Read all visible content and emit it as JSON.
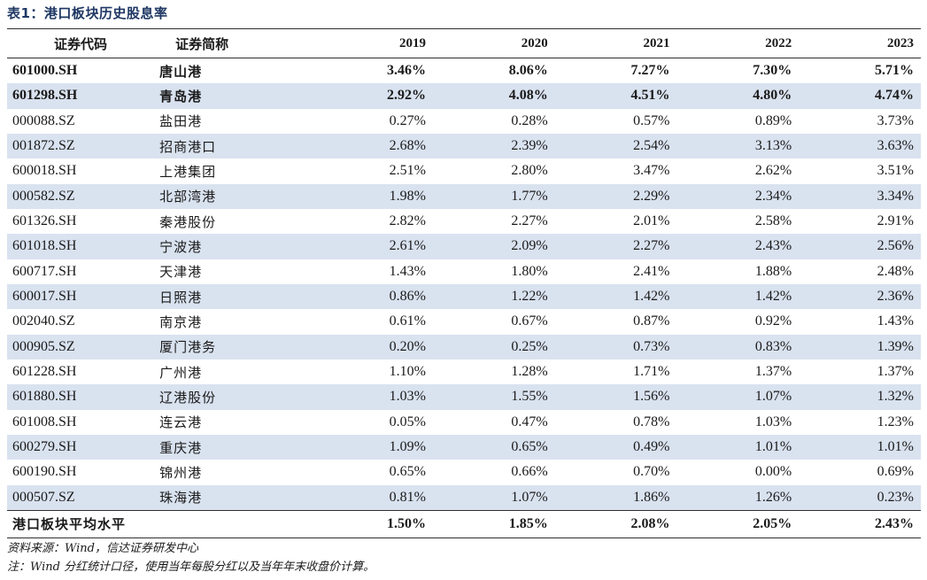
{
  "title": "表1：港口板块历史股息率",
  "headers": {
    "code": "证券代码",
    "name": "证券简称",
    "years": [
      "2019",
      "2020",
      "2021",
      "2022",
      "2023"
    ]
  },
  "rows": [
    {
      "code": "601000.SH",
      "name": "唐山港",
      "values": [
        "3.46%",
        "8.06%",
        "7.27%",
        "7.30%",
        "5.71%"
      ],
      "bold": true
    },
    {
      "code": "601298.SH",
      "name": "青岛港",
      "values": [
        "2.92%",
        "4.08%",
        "4.51%",
        "4.80%",
        "4.74%"
      ],
      "bold": true
    },
    {
      "code": "000088.SZ",
      "name": "盐田港",
      "values": [
        "0.27%",
        "0.28%",
        "0.57%",
        "0.89%",
        "3.73%"
      ]
    },
    {
      "code": "001872.SZ",
      "name": "招商港口",
      "values": [
        "2.68%",
        "2.39%",
        "2.54%",
        "3.13%",
        "3.63%"
      ]
    },
    {
      "code": "600018.SH",
      "name": "上港集团",
      "values": [
        "2.51%",
        "2.80%",
        "3.47%",
        "2.62%",
        "3.51%"
      ]
    },
    {
      "code": "000582.SZ",
      "name": "北部湾港",
      "values": [
        "1.98%",
        "1.77%",
        "2.29%",
        "2.34%",
        "3.34%"
      ]
    },
    {
      "code": "601326.SH",
      "name": "秦港股份",
      "values": [
        "2.82%",
        "2.27%",
        "2.01%",
        "2.58%",
        "2.91%"
      ]
    },
    {
      "code": "601018.SH",
      "name": "宁波港",
      "values": [
        "2.61%",
        "2.09%",
        "2.27%",
        "2.43%",
        "2.56%"
      ]
    },
    {
      "code": "600717.SH",
      "name": "天津港",
      "values": [
        "1.43%",
        "1.80%",
        "2.41%",
        "1.88%",
        "2.48%"
      ]
    },
    {
      "code": "600017.SH",
      "name": "日照港",
      "values": [
        "0.86%",
        "1.22%",
        "1.42%",
        "1.42%",
        "2.36%"
      ]
    },
    {
      "code": "002040.SZ",
      "name": "南京港",
      "values": [
        "0.61%",
        "0.67%",
        "0.87%",
        "0.92%",
        "1.43%"
      ]
    },
    {
      "code": "000905.SZ",
      "name": "厦门港务",
      "values": [
        "0.20%",
        "0.25%",
        "0.73%",
        "0.83%",
        "1.39%"
      ]
    },
    {
      "code": "601228.SH",
      "name": "广州港",
      "values": [
        "1.10%",
        "1.28%",
        "1.71%",
        "1.37%",
        "1.37%"
      ]
    },
    {
      "code": "601880.SH",
      "name": "辽港股份",
      "values": [
        "1.03%",
        "1.55%",
        "1.56%",
        "1.07%",
        "1.32%"
      ]
    },
    {
      "code": "601008.SH",
      "name": "连云港",
      "values": [
        "0.05%",
        "0.47%",
        "0.78%",
        "1.03%",
        "1.23%"
      ]
    },
    {
      "code": "600279.SH",
      "name": "重庆港",
      "values": [
        "1.09%",
        "0.65%",
        "0.49%",
        "1.01%",
        "1.01%"
      ]
    },
    {
      "code": "600190.SH",
      "name": "锦州港",
      "values": [
        "0.65%",
        "0.66%",
        "0.70%",
        "0.00%",
        "0.69%"
      ]
    },
    {
      "code": "000507.SZ",
      "name": "珠海港",
      "values": [
        "0.81%",
        "1.07%",
        "1.86%",
        "1.26%",
        "0.23%"
      ]
    }
  ],
  "average": {
    "label": "港口板块平均水平",
    "values": [
      "1.50%",
      "1.85%",
      "2.08%",
      "2.05%",
      "2.43%"
    ]
  },
  "notes": [
    "资料来源：Wind，信达证券研发中心",
    "注：Wind 分红统计口径，使用当年每股分红以及当年年末收盘价计算。"
  ]
}
